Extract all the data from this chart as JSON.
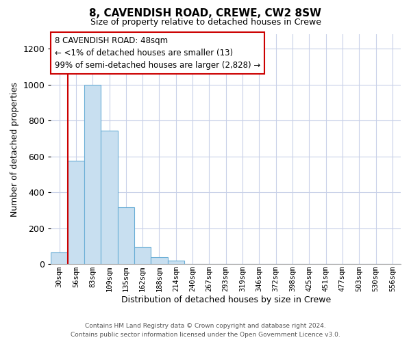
{
  "title": "8, CAVENDISH ROAD, CREWE, CW2 8SW",
  "subtitle": "Size of property relative to detached houses in Crewe",
  "xlabel": "Distribution of detached houses by size in Crewe",
  "ylabel": "Number of detached properties",
  "bar_labels": [
    "30sqm",
    "56sqm",
    "83sqm",
    "109sqm",
    "135sqm",
    "162sqm",
    "188sqm",
    "214sqm",
    "240sqm",
    "267sqm",
    "293sqm",
    "319sqm",
    "346sqm",
    "372sqm",
    "398sqm",
    "425sqm",
    "451sqm",
    "477sqm",
    "503sqm",
    "530sqm",
    "556sqm"
  ],
  "bar_heights": [
    67,
    575,
    1000,
    745,
    315,
    95,
    40,
    20,
    0,
    0,
    0,
    0,
    0,
    0,
    0,
    0,
    0,
    0,
    0,
    0,
    0
  ],
  "bar_color": "#c8dff0",
  "bar_edge_color": "#6aaed6",
  "highlight_line_color": "#cc0000",
  "ylim": [
    0,
    1280
  ],
  "yticks": [
    0,
    200,
    400,
    600,
    800,
    1000,
    1200
  ],
  "annotation_title": "8 CAVENDISH ROAD: 48sqm",
  "annotation_line1": "← <1% of detached houses are smaller (13)",
  "annotation_line2": "99% of semi-detached houses are larger (2,828) →",
  "footer_line1": "Contains HM Land Registry data © Crown copyright and database right 2024.",
  "footer_line2": "Contains public sector information licensed under the Open Government Licence v3.0.",
  "grid_color": "#c8d0e8",
  "background_color": "#ffffff"
}
